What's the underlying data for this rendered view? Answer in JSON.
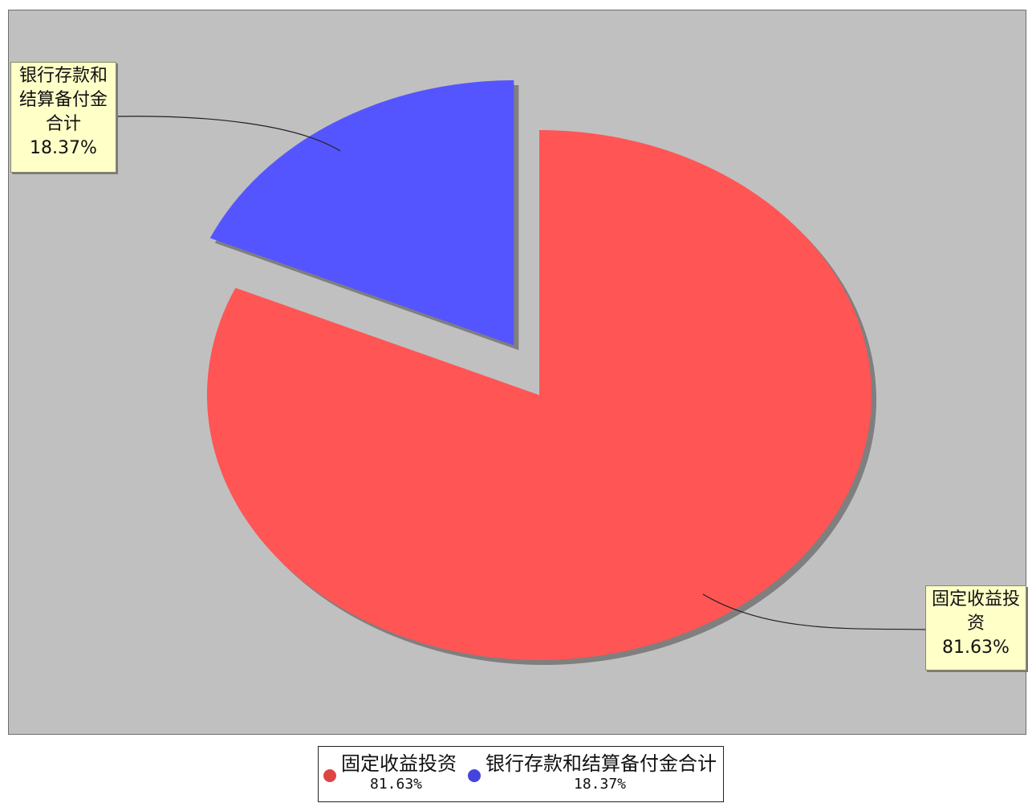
{
  "chart_data": {
    "type": "pie",
    "title": "",
    "slices": [
      {
        "label": "固定收益投资",
        "callout_lines": [
          "固定收益投",
          "资"
        ],
        "percent": 81.63,
        "percent_label": "81.63%",
        "legend_percent_label": "81.63%",
        "color": "#ff5555"
      },
      {
        "label": "银行存款和结算备付金合计",
        "callout_lines": [
          "银行存款和",
          "结算备付金",
          "合计"
        ],
        "percent": 18.37,
        "percent_label": "18.37%",
        "legend_percent_label": "18.37%",
        "color": "#5555ff",
        "exploded": true
      }
    ],
    "plot_background": "#c0c0c0",
    "shadow_color": "#7f7f7f",
    "callout_background": "#ffffc8",
    "legend_position": "bottom"
  }
}
